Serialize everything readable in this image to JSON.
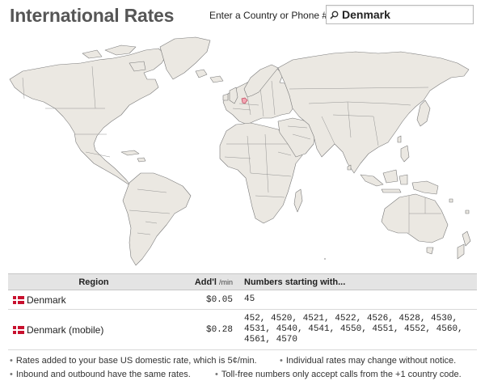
{
  "page_title": "International Rates",
  "search": {
    "label": "Enter a Country or Phone #",
    "value": "Denmark"
  },
  "map": {
    "highlighted_country": "Denmark",
    "highlight_color": "#f2a6b4",
    "land_color": "#ebe8e2"
  },
  "table": {
    "headers": {
      "region": "Region",
      "addl": "Add'l",
      "addl_unit": "/min",
      "numbers": "Numbers starting with..."
    },
    "rows": [
      {
        "region": "Denmark",
        "rate": "$0.05",
        "numbers": "45"
      },
      {
        "region": "Denmark (mobile)",
        "rate": "$0.28",
        "numbers": "452, 4520, 4521, 4522, 4526, 4528, 4530, 4531, 4540, 4541, 4550, 4551, 4552, 4560, 4561, 4570"
      }
    ]
  },
  "notes": [
    "Rates added to your base US domestic rate, which is 5¢/min.",
    "Inbound and outbound have the same rates.",
    "Individual rates may change without notice.",
    "Toll-free numbers only accept calls from the +1 country code."
  ]
}
